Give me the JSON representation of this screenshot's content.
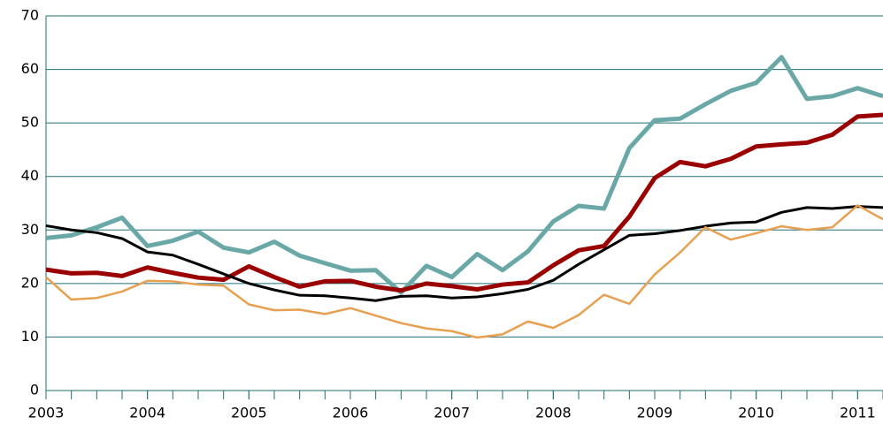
{
  "chart_data": {
    "type": "line",
    "x": [
      2003,
      2003.25,
      2003.5,
      2003.75,
      2004,
      2004.25,
      2004.5,
      2004.75,
      2005,
      2005.25,
      2005.5,
      2005.75,
      2006,
      2006.25,
      2006.5,
      2006.75,
      2007,
      2007.25,
      2007.5,
      2007.75,
      2008,
      2008.25,
      2008.5,
      2008.75,
      2009,
      2009.25,
      2009.5,
      2009.75,
      2010,
      2010.25,
      2010.5,
      2010.75,
      2011,
      2011.25
    ],
    "series": [
      {
        "color": "#6aa8a8",
        "values": [
          28.5,
          29,
          30.5,
          32.3,
          27,
          28,
          29.7,
          26.7,
          25.8,
          27.8,
          25.2,
          23.8,
          22.4,
          22.5,
          18.3,
          23.3,
          21.2,
          25.5,
          22.5,
          26,
          31.6,
          34.5,
          34,
          45.3,
          50.5,
          50.8,
          53.5,
          56,
          57.5,
          62.3,
          54.5,
          55,
          56.5,
          55
        ]
      },
      {
        "color": "#9b0000",
        "values": [
          22.6,
          21.9,
          22,
          21.4,
          23,
          22,
          21.1,
          20.7,
          23.2,
          21.2,
          19.4,
          20.4,
          20.5,
          19.4,
          18.7,
          20,
          19.5,
          18.9,
          19.8,
          20.2,
          23.4,
          26.2,
          27,
          32.5,
          39.7,
          42.7,
          41.9,
          43.3,
          45.6,
          46,
          46.3,
          47.8,
          51.2,
          51.5
        ]
      },
      {
        "color": "#000000",
        "values": [
          30.8,
          30,
          29.5,
          28.4,
          25.9,
          25.3,
          23.6,
          21.8,
          20,
          18.8,
          17.8,
          17.7,
          17.3,
          16.8,
          17.6,
          17.7,
          17.3,
          17.5,
          18.1,
          18.9,
          20.6,
          23.6,
          26.3,
          29,
          29.3,
          29.9,
          30.7,
          31.3,
          31.5,
          33.3,
          34.2,
          34,
          34.4,
          34.2
        ]
      },
      {
        "color": "#e8a050",
        "values": [
          21.2,
          17,
          17.3,
          18.5,
          20.5,
          20.4,
          19.8,
          19.6,
          16.1,
          15,
          15.1,
          14.3,
          15.4,
          14,
          12.6,
          11.6,
          11.1,
          9.9,
          10.5,
          12.9,
          11.7,
          14.1,
          17.9,
          16.2,
          21.7,
          25.8,
          30.5,
          28.2,
          29.4,
          30.7,
          30,
          30.5,
          34.6,
          32
        ]
      }
    ],
    "xlim": [
      2003,
      2011.25
    ],
    "xticks": [
      2003,
      2004,
      2005,
      2006,
      2007,
      2008,
      2009,
      2010,
      2011
    ],
    "ylim": [
      0,
      70
    ],
    "yticks": [
      0,
      10,
      20,
      30,
      40,
      50,
      60,
      70
    ],
    "grid": true
  }
}
